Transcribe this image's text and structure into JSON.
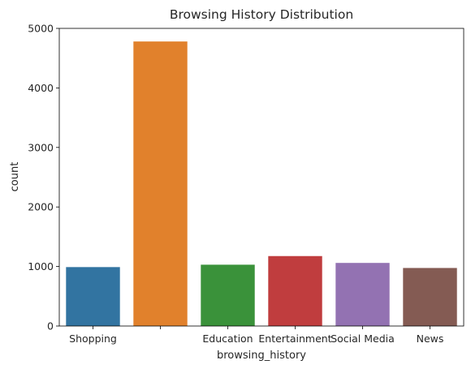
{
  "chart_data": {
    "type": "bar",
    "title": "Browsing History Distribution",
    "xlabel": "browsing_history",
    "ylabel": "count",
    "categories": [
      "Shopping",
      "",
      "Education",
      "Entertainment",
      "Social Media",
      "News"
    ],
    "values": [
      990,
      4780,
      1030,
      1175,
      1060,
      975
    ],
    "colors": [
      "#3274a1",
      "#e1812c",
      "#3a923a",
      "#c03d3e",
      "#9372b2",
      "#845b53"
    ],
    "ylim": [
      0,
      5000
    ],
    "yticks": [
      0,
      1000,
      2000,
      3000,
      4000,
      5000
    ],
    "grid": false,
    "legend": "none"
  }
}
